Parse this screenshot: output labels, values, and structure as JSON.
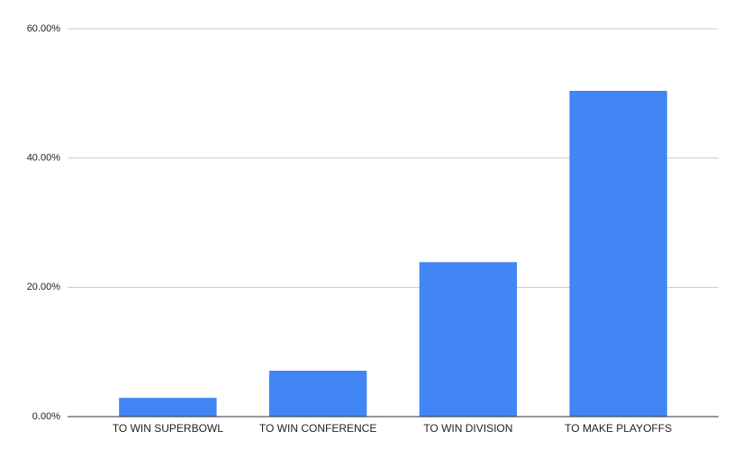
{
  "chart_data": {
    "type": "bar",
    "categories": [
      "TO WIN SUPERBOWL",
      "TO WIN CONFERENCE",
      "TO WIN DIVISION",
      "TO MAKE PLAYOFFS"
    ],
    "values": [
      2.9,
      7.1,
      23.9,
      50.4
    ],
    "color": "#4285f4",
    "ylim": [
      0,
      60
    ],
    "yticks": [
      {
        "value": 0,
        "label": "0.00%"
      },
      {
        "value": 20,
        "label": "20.00%"
      },
      {
        "value": 40,
        "label": "40.00%"
      },
      {
        "value": 60,
        "label": "60.00%"
      }
    ],
    "grid": true
  }
}
